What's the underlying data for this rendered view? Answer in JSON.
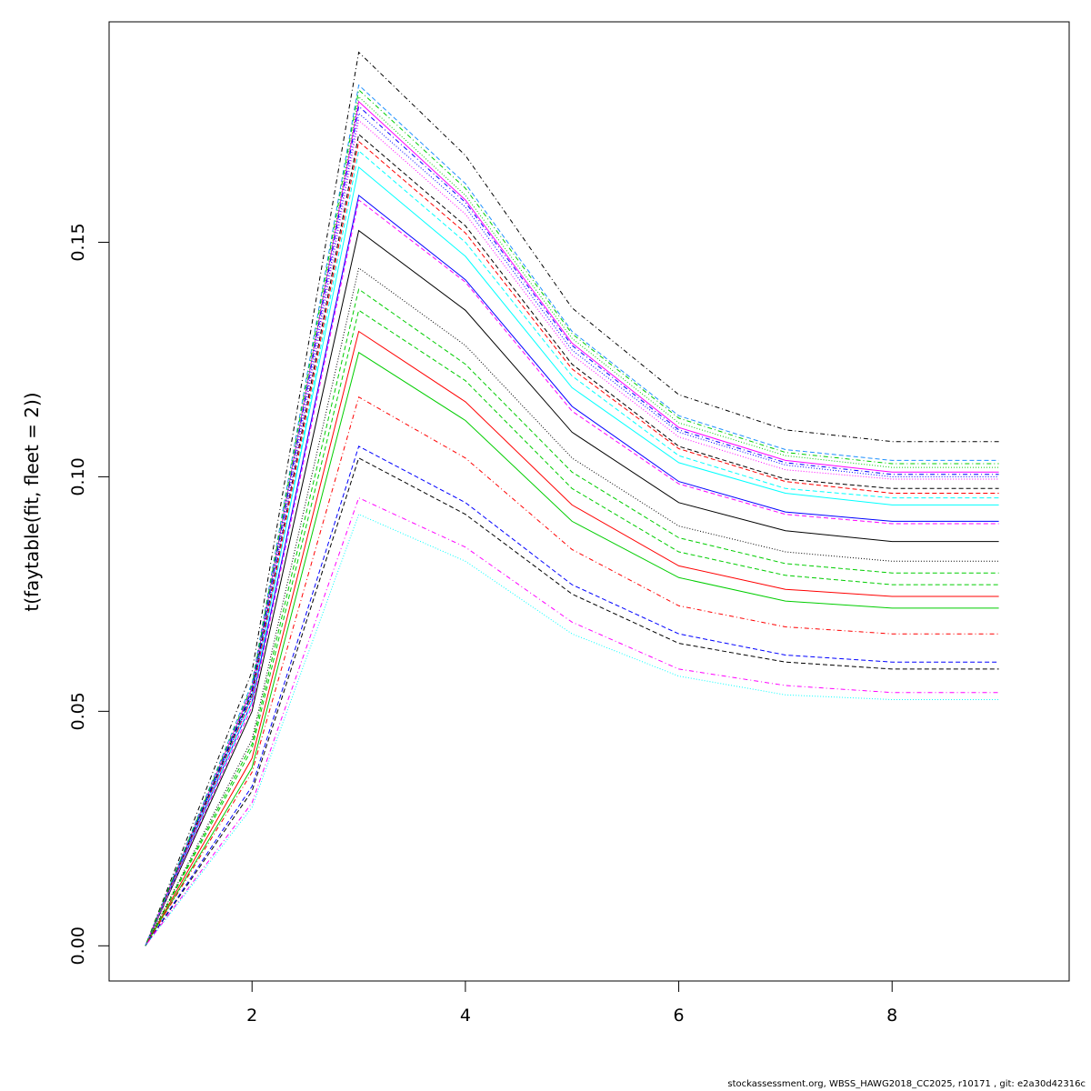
{
  "chart_data": {
    "type": "line",
    "ylabel": "t(faytable(fit, fleet = 2))",
    "xlabel": "",
    "x": [
      1,
      2,
      3,
      4,
      5,
      6,
      7,
      8,
      9
    ],
    "xlim": [
      0.66,
      9.66
    ],
    "ylim": [
      -0.0075,
      0.197
    ],
    "xticks": [
      2,
      4,
      6,
      8
    ],
    "yticks": [
      0.0,
      0.05,
      0.1,
      0.15
    ],
    "xtick_labels": [
      "2",
      "4",
      "6",
      "8"
    ],
    "ytick_labels": [
      "0.00",
      "0.05",
      "0.10",
      "0.15"
    ],
    "grid": false,
    "legend": "none",
    "series": [
      {
        "color": "#000000",
        "dash": "solid",
        "values": [
          0,
          0.05,
          0.1525,
          0.1355,
          0.1095,
          0.0945,
          0.0885,
          0.0862,
          0.0862
        ]
      },
      {
        "color": "#ff0000",
        "dash": "solid",
        "values": [
          0,
          0.04,
          0.131,
          0.116,
          0.094,
          0.081,
          0.076,
          0.0745,
          0.0745
        ]
      },
      {
        "color": "#00cd00",
        "dash": "solid",
        "values": [
          0,
          0.038,
          0.1265,
          0.112,
          0.0905,
          0.0785,
          0.0735,
          0.072,
          0.072
        ]
      },
      {
        "color": "#0000ff",
        "dash": "solid",
        "values": [
          0,
          0.052,
          0.16,
          0.142,
          0.115,
          0.099,
          0.0925,
          0.0905,
          0.0905
        ]
      },
      {
        "color": "#00ffff",
        "dash": "solid",
        "values": [
          0,
          0.0535,
          0.166,
          0.147,
          0.119,
          0.103,
          0.0965,
          0.094,
          0.094
        ]
      },
      {
        "color": "#ff00ff",
        "dash": "solid",
        "values": [
          0,
          0.055,
          0.18,
          0.159,
          0.1285,
          0.1105,
          0.1035,
          0.101,
          0.101
        ]
      },
      {
        "color": "#000000",
        "dash": "dashed",
        "values": [
          0,
          0.033,
          0.104,
          0.092,
          0.075,
          0.0645,
          0.0605,
          0.059,
          0.059
        ]
      },
      {
        "color": "#0000ff",
        "dash": "dashed",
        "values": [
          0,
          0.034,
          0.1065,
          0.0945,
          0.077,
          0.0665,
          0.062,
          0.0605,
          0.0605
        ]
      },
      {
        "color": "#00cd00",
        "dash": "dashed",
        "values": [
          0,
          0.043,
          0.14,
          0.124,
          0.101,
          0.087,
          0.0815,
          0.0795,
          0.0795
        ]
      },
      {
        "color": "#00cd00",
        "dash": "dashed",
        "values": [
          0,
          0.042,
          0.1355,
          0.1205,
          0.0975,
          0.084,
          0.079,
          0.077,
          0.077
        ]
      },
      {
        "color": "#ff00ff",
        "dash": "dashed",
        "values": [
          0,
          0.051,
          0.159,
          0.1415,
          0.114,
          0.0985,
          0.092,
          0.09,
          0.09
        ]
      },
      {
        "color": "#00ffff",
        "dash": "dashed",
        "values": [
          0,
          0.052,
          0.1695,
          0.15,
          0.1215,
          0.1045,
          0.0975,
          0.0955,
          0.0955
        ]
      },
      {
        "color": "#000000",
        "dash": "dashed",
        "values": [
          0,
          0.054,
          0.173,
          0.1535,
          0.124,
          0.1065,
          0.0995,
          0.0975,
          0.0975
        ]
      },
      {
        "color": "#ff0000",
        "dash": "dashed",
        "values": [
          0,
          0.053,
          0.1715,
          0.152,
          0.123,
          0.106,
          0.099,
          0.0965,
          0.0965
        ]
      },
      {
        "color": "#1e90ff",
        "dash": "dashed",
        "values": [
          0,
          0.056,
          0.1835,
          0.1625,
          0.131,
          0.113,
          0.1058,
          0.1035,
          0.1035
        ]
      },
      {
        "color": "#000000",
        "dash": "dotted",
        "values": [
          0,
          0.044,
          0.1445,
          0.128,
          0.104,
          0.0895,
          0.084,
          0.082,
          0.082
        ]
      },
      {
        "color": "#00ffff",
        "dash": "dotted",
        "values": [
          0,
          0.0295,
          0.092,
          0.082,
          0.0665,
          0.0575,
          0.0535,
          0.0525,
          0.0525
        ]
      },
      {
        "color": "#00cd00",
        "dash": "dotted",
        "values": [
          0,
          0.0545,
          0.181,
          0.16,
          0.1295,
          0.1115,
          0.1045,
          0.102,
          0.102
        ]
      },
      {
        "color": "#0000ff",
        "dash": "dotted",
        "values": [
          0,
          0.0535,
          0.1775,
          0.1575,
          0.127,
          0.1095,
          0.1025,
          0.1,
          0.1
        ]
      },
      {
        "color": "#ff00ff",
        "dash": "dotted",
        "values": [
          0,
          0.053,
          0.176,
          0.156,
          0.126,
          0.1085,
          0.1015,
          0.0995,
          0.0995
        ]
      },
      {
        "color": "#ff0000",
        "dash": "dotdash",
        "values": [
          0,
          0.037,
          0.117,
          0.104,
          0.0845,
          0.0725,
          0.068,
          0.0665,
          0.0665
        ]
      },
      {
        "color": "#ff00ff",
        "dash": "dotdash",
        "values": [
          0,
          0.0305,
          0.0955,
          0.085,
          0.069,
          0.059,
          0.0555,
          0.054,
          0.054
        ]
      },
      {
        "color": "#000000",
        "dash": "dotdash",
        "values": [
          0,
          0.0585,
          0.1905,
          0.1685,
          0.136,
          0.1175,
          0.11,
          0.1075,
          0.1075
        ]
      },
      {
        "color": "#0000ff",
        "dash": "dotdash",
        "values": [
          0,
          0.0545,
          0.179,
          0.1585,
          0.128,
          0.11,
          0.103,
          0.1005,
          0.1005
        ]
      },
      {
        "color": "#00cd00",
        "dash": "dotdash",
        "values": [
          0,
          0.0555,
          0.1825,
          0.1615,
          0.1305,
          0.1125,
          0.1052,
          0.1028,
          0.1028
        ]
      }
    ]
  },
  "footer": {
    "text": "stockassessment.org, WBSS_HAWG2018_CC2025, r10171 , git: e2a30d42316c"
  }
}
